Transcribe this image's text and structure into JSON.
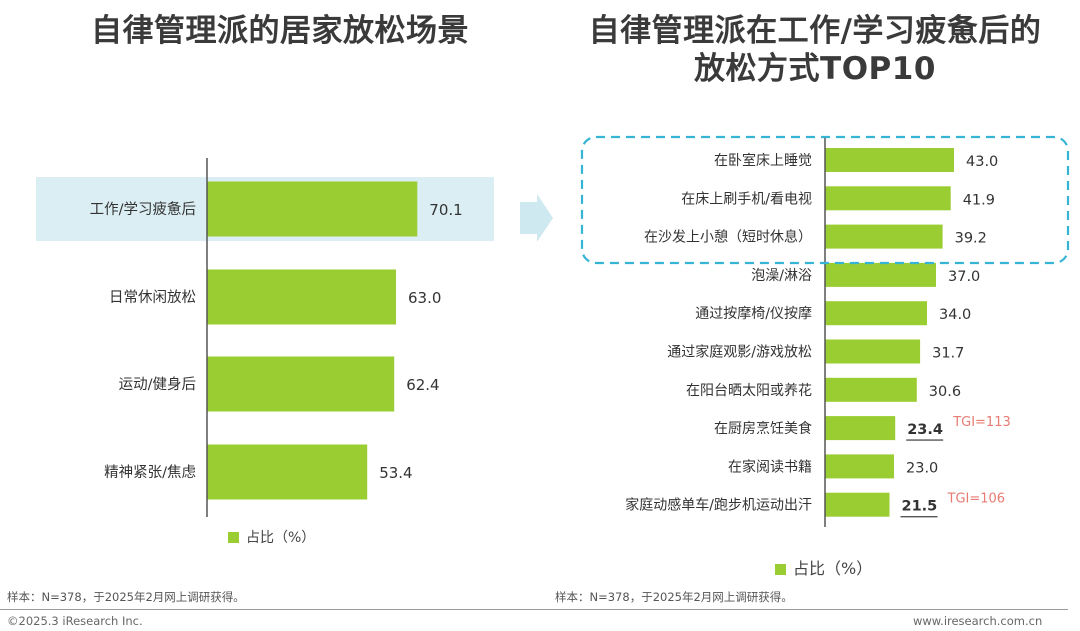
{
  "colors": {
    "bar": "#9acd32",
    "highlight": "#dbeef3",
    "dash": "#36b4d4",
    "tgi": "#e87b74",
    "axis": "#555555"
  },
  "left_title": "自律管理派的居家放松场景",
  "right_title_line1": "自律管理派在工作/学习疲惫后的",
  "right_title_line2": "放松方式TOP10",
  "legend_left": "占比（%）",
  "legend_right": "占比（%）",
  "footnote_left": "样本：N=378，于2025年2月网上调研获得。",
  "footnote_right": "样本：N=378，于2025年2月网上调研获得。",
  "footer_left": "©2025.3 iResearch Inc.",
  "footer_right": "www.iresearch.com.cn",
  "chart_data": [
    {
      "type": "bar",
      "orientation": "horizontal",
      "title": "自律管理派的居家放松场景",
      "categories": [
        "工作/学习疲惫后",
        "日常休闲放松",
        "运动/健身后",
        "精神紧张/焦虑"
      ],
      "values": [
        70.1,
        63.0,
        62.4,
        53.4
      ],
      "value_labels": [
        "70.1",
        "63.0",
        "62.4",
        "53.4"
      ],
      "series_name": "占比（%）",
      "highlighted_category": "工作/学习疲惫后"
    },
    {
      "type": "bar",
      "orientation": "horizontal",
      "title": "自律管理派在工作/学习疲惫后的放松方式TOP10",
      "categories": [
        "在卧室床上睡觉",
        "在床上刷手机/看电视",
        "在沙发上小憩（短时休息）",
        "泡澡/淋浴",
        "通过按摩椅/仪按摩",
        "通过家庭观影/游戏放松",
        "在阳台晒太阳或养花",
        "在厨房烹饪美食",
        "在家阅读书籍",
        "家庭动感单车/跑步机运动出汗"
      ],
      "values": [
        43.0,
        41.9,
        39.2,
        37.0,
        34.0,
        31.7,
        30.6,
        23.4,
        23.0,
        21.5
      ],
      "value_labels": [
        "43.0",
        "41.9",
        "39.2",
        "37.0",
        "34.0",
        "31.7",
        "30.6",
        "23.4",
        "23.0",
        "21.5"
      ],
      "series_name": "占比（%）",
      "emphasized": [
        false,
        false,
        false,
        false,
        false,
        false,
        false,
        true,
        false,
        true
      ],
      "annotations": [
        "",
        "",
        "",
        "",
        "",
        "",
        "",
        "TGI=113",
        "",
        "TGI=106"
      ],
      "highlighted_group": [
        "在卧室床上睡觉",
        "在床上刷手机/看电视",
        "在沙发上小憩（短时休息）"
      ]
    }
  ]
}
